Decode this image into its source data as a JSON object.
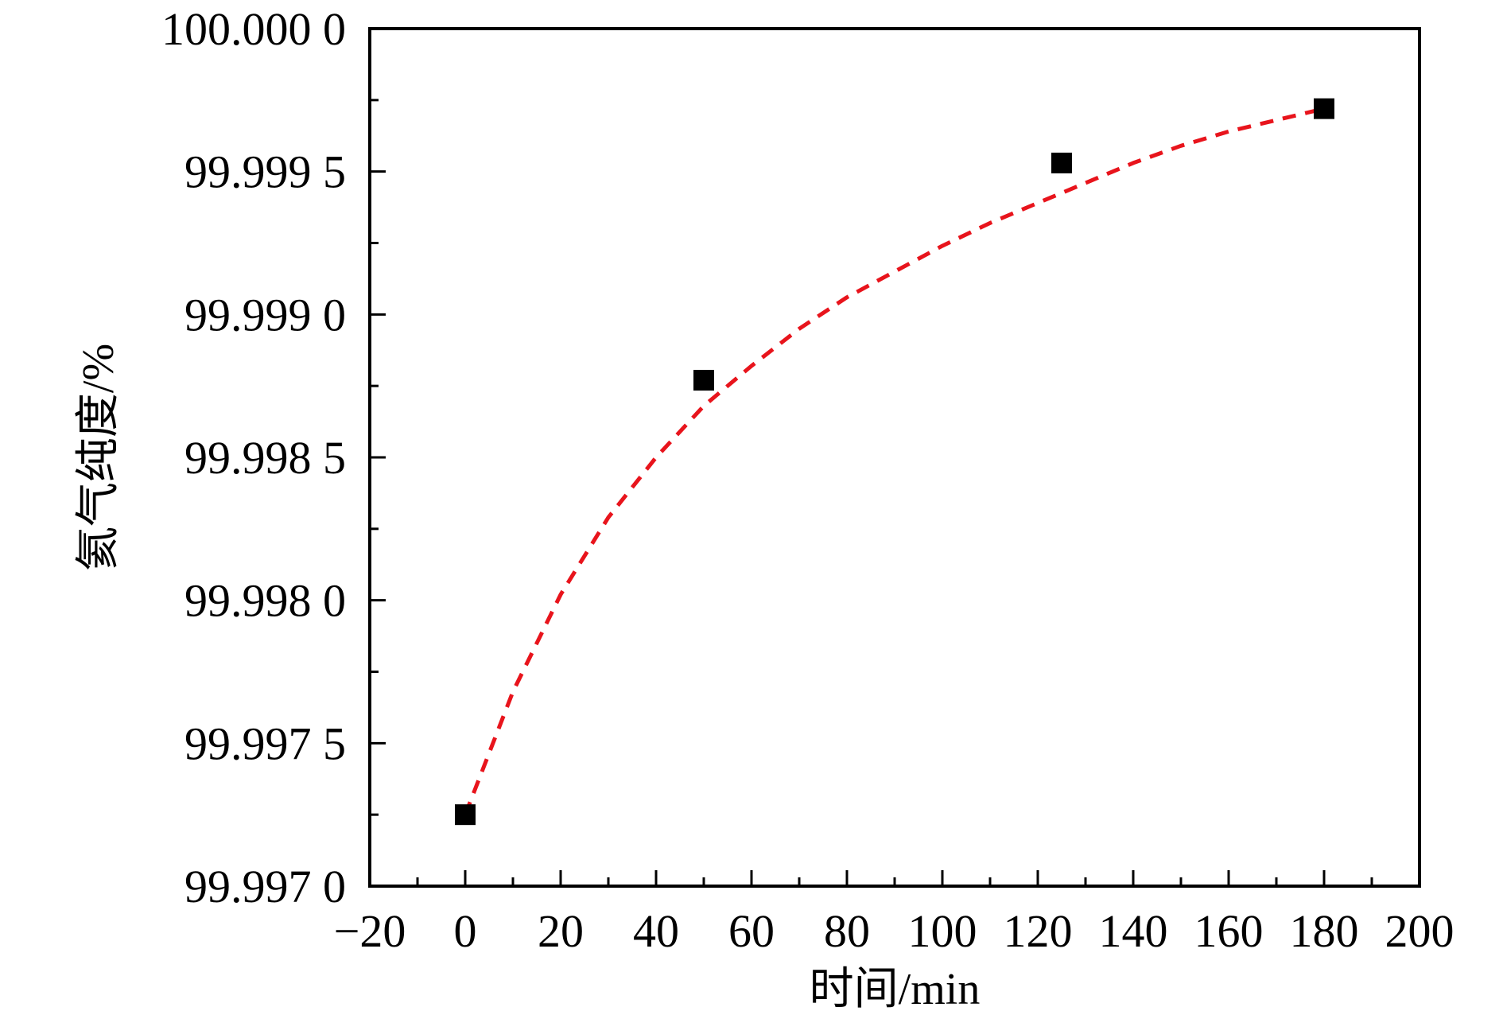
{
  "chart_data": {
    "type": "scatter",
    "xlabel": "时间/min",
    "ylabel": "氦气纯度/%",
    "xlim": [
      -20,
      200
    ],
    "ylim": [
      99.997,
      100.0
    ],
    "x_ticks": [
      -20,
      0,
      20,
      40,
      60,
      80,
      100,
      120,
      140,
      160,
      180,
      200
    ],
    "x_tick_labels": [
      "−20",
      "0",
      "20",
      "40",
      "60",
      "80",
      "100",
      "120",
      "140",
      "160",
      "180",
      "200"
    ],
    "y_ticks": [
      99.997,
      99.9975,
      99.998,
      99.9985,
      99.999,
      99.9995,
      100.0
    ],
    "y_tick_labels": [
      "99.997 0",
      "99.997 5",
      "99.998 0",
      "99.998 5",
      "99.999 0",
      "99.999 5",
      "100.000 0"
    ],
    "grid": false,
    "series": [
      {
        "kind": "markers",
        "marker": "square",
        "color": "#000000",
        "x": [
          0,
          50,
          125,
          180
        ],
        "y": [
          99.99725,
          99.99877,
          99.99953,
          99.99972
        ]
      },
      {
        "kind": "fit-line",
        "style": "dashed",
        "color": "#e8141c",
        "x": [
          0,
          10,
          20,
          30,
          40,
          50,
          60,
          70,
          80,
          90,
          100,
          110,
          120,
          130,
          140,
          150,
          160,
          170,
          180
        ],
        "y": [
          99.99725,
          99.99768,
          99.99802,
          99.99829,
          99.9985,
          99.99868,
          99.99882,
          99.99895,
          99.99906,
          99.99915,
          99.99924,
          99.99932,
          99.99939,
          99.99946,
          99.99953,
          99.99959,
          99.99964,
          99.99968,
          99.99972
        ]
      }
    ]
  }
}
